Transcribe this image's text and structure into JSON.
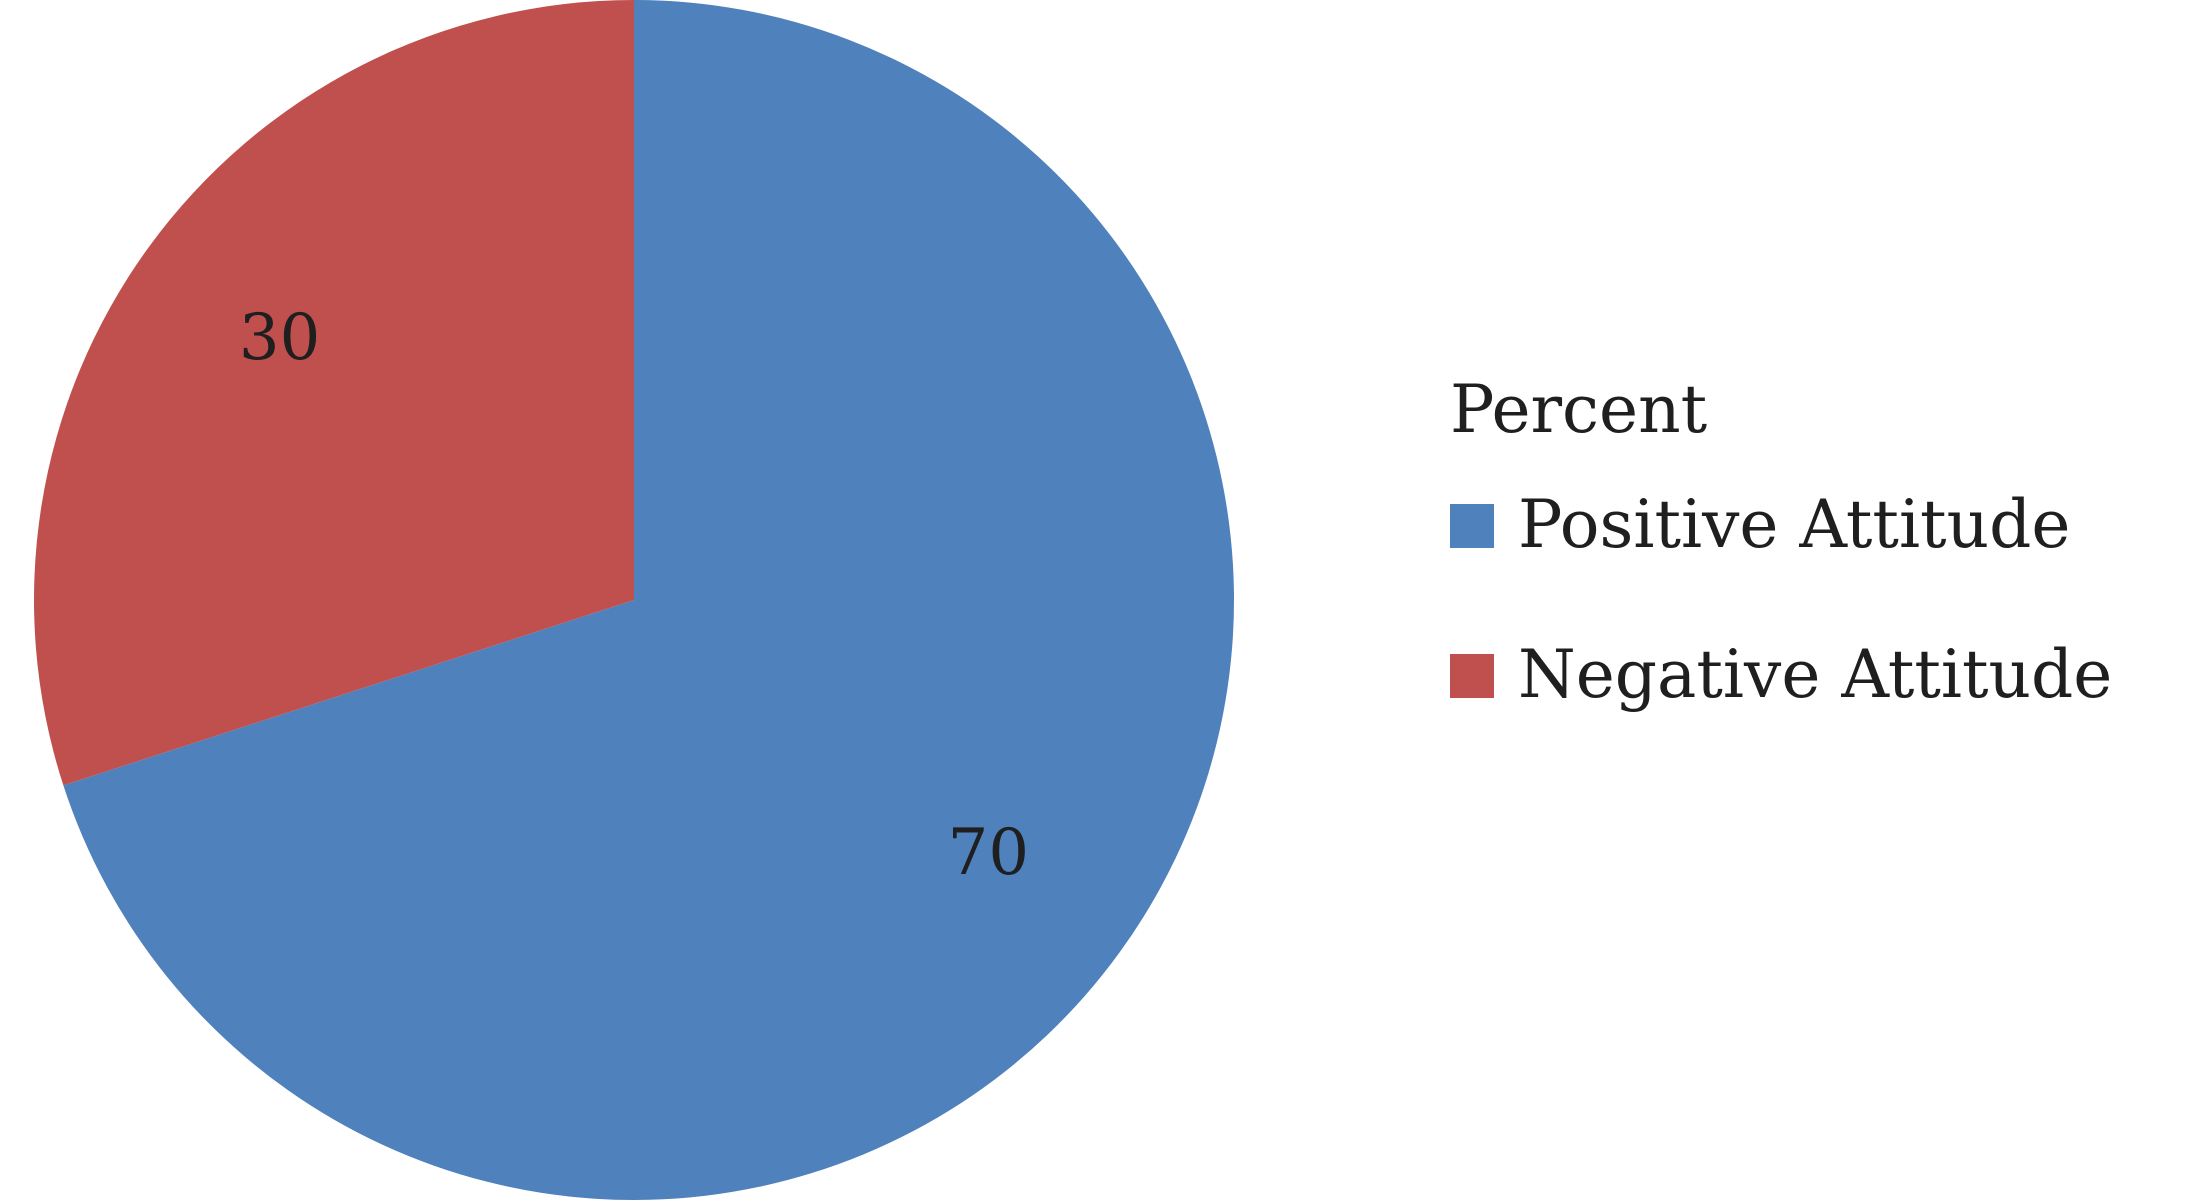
{
  "chart_data": {
    "type": "pie",
    "legend_title": "Percent",
    "legend_position": "right",
    "start_angle_deg": 0,
    "direction": "clockwise",
    "slices": [
      {
        "label": "Positive Attitude",
        "value": 70,
        "data_label": "70",
        "color": "#4f81bd"
      },
      {
        "label": "Negative Attitude",
        "value": 30,
        "data_label": "30",
        "color": "#c0504d"
      }
    ]
  }
}
